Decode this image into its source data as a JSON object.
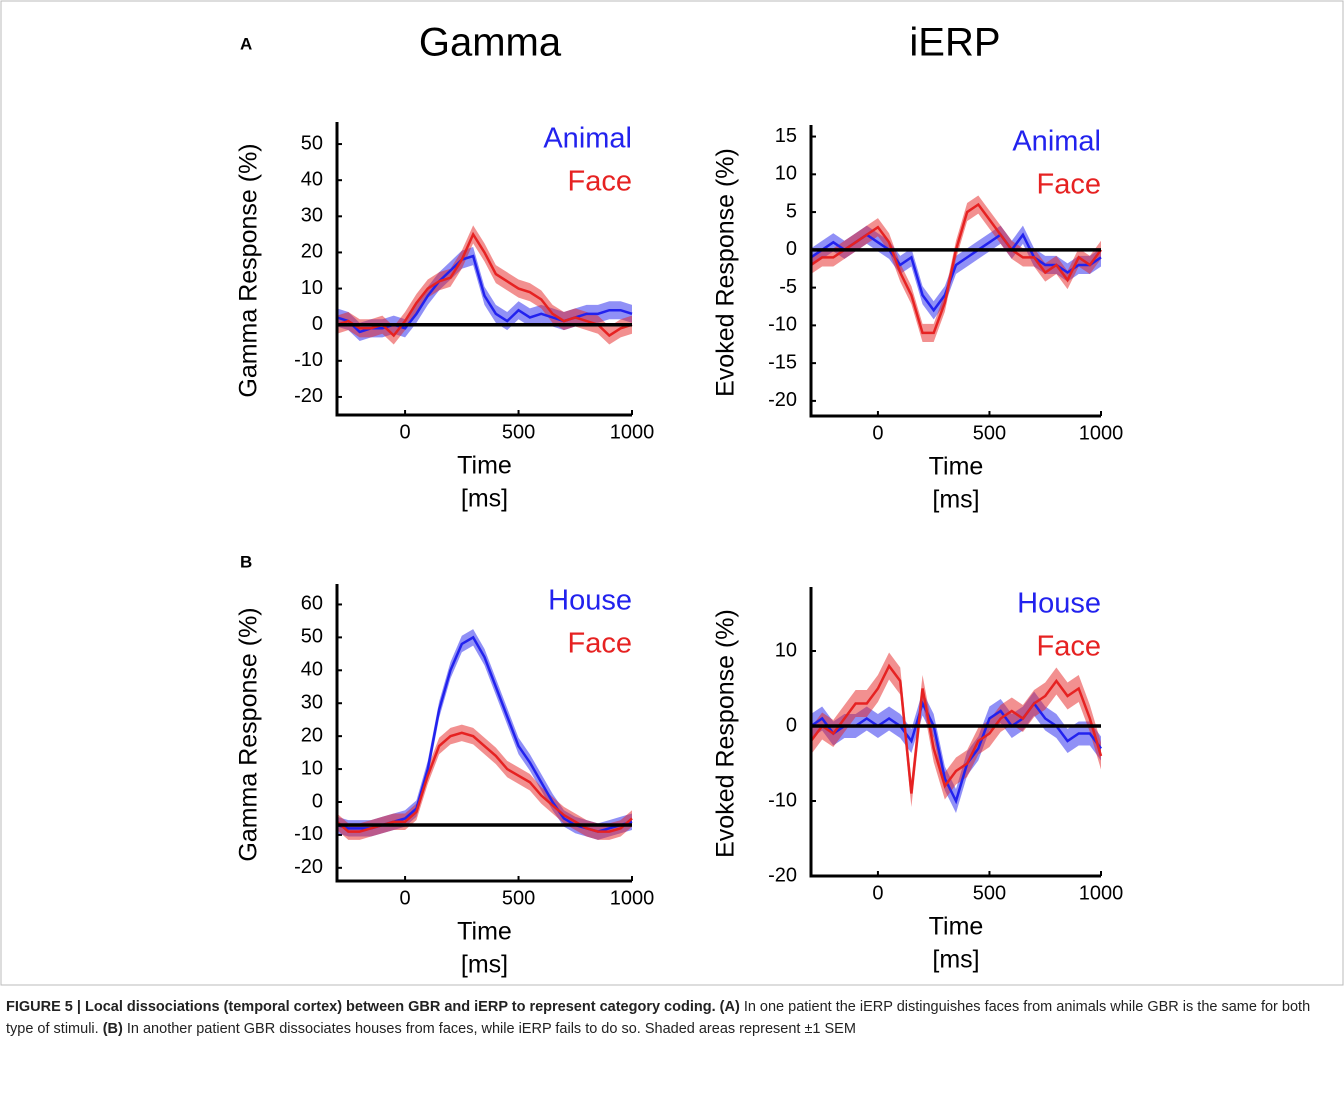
{
  "column_titles": [
    "Gamma",
    "iERP"
  ],
  "panel_labels": [
    "A",
    "B"
  ],
  "chart_data": [
    {
      "type": "line",
      "ylabel": "Gamma Response (%)",
      "xlabel": [
        "Time",
        "[ms]"
      ],
      "x": [
        -300,
        -250,
        -200,
        -150,
        -100,
        -50,
        0,
        50,
        100,
        150,
        200,
        250,
        300,
        350,
        400,
        450,
        500,
        550,
        600,
        650,
        700,
        750,
        800,
        850,
        900,
        950,
        1000
      ],
      "xlim": [
        -300,
        1000
      ],
      "xticks": [
        0,
        500,
        1000
      ],
      "ylim": [
        -25,
        55
      ],
      "yticks": [
        -20,
        -10,
        0,
        10,
        20,
        30,
        40,
        50
      ],
      "hline": 0,
      "series": [
        {
          "name": "Animal",
          "color": "#2222ee",
          "error": 2.5,
          "values": [
            2,
            1,
            -2,
            -1,
            -1,
            0,
            -1,
            3,
            8,
            12,
            15,
            18,
            19,
            8,
            3,
            1,
            4,
            2,
            3,
            2,
            1,
            2,
            3,
            3,
            4,
            4,
            3
          ]
        },
        {
          "name": "Face",
          "color": "#e62222",
          "error": 2.5,
          "values": [
            0,
            1,
            -1,
            -1,
            0,
            -3,
            1,
            6,
            10,
            12,
            13,
            18,
            25,
            20,
            14,
            12,
            10,
            9,
            7,
            3,
            1,
            2,
            1,
            0,
            -3,
            -1,
            0
          ]
        }
      ]
    },
    {
      "type": "line",
      "ylabel": "Evoked Response (%)",
      "xlabel": [
        "Time",
        "[ms]"
      ],
      "x": [
        -300,
        -250,
        -200,
        -150,
        -100,
        -50,
        0,
        50,
        100,
        150,
        200,
        250,
        300,
        350,
        400,
        450,
        500,
        550,
        600,
        650,
        700,
        750,
        800,
        850,
        900,
        950,
        1000
      ],
      "xlim": [
        -300,
        1000
      ],
      "xticks": [
        0,
        500,
        1000
      ],
      "ylim": [
        -22,
        16
      ],
      "yticks": [
        -20,
        -15,
        -10,
        -5,
        0,
        5,
        10,
        15
      ],
      "hline": 0,
      "series": [
        {
          "name": "Animal",
          "color": "#2222ee",
          "error": 1.2,
          "values": [
            -1,
            0,
            1,
            0,
            1,
            2,
            1,
            0,
            -2,
            -1,
            -6,
            -8,
            -6,
            -2,
            -1,
            0,
            1,
            2,
            0,
            2,
            -1,
            -2,
            -2,
            -3,
            -2,
            -2,
            -1
          ]
        },
        {
          "name": "Face",
          "color": "#e62222",
          "error": 1.2,
          "values": [
            -2,
            -1,
            -1,
            0,
            1,
            2,
            3,
            1,
            -3,
            -6,
            -11,
            -11,
            -7,
            0,
            5,
            6,
            4,
            2,
            0,
            -1,
            -1,
            -3,
            -2,
            -4,
            -1,
            -2,
            0
          ]
        }
      ]
    },
    {
      "type": "line",
      "ylabel": "Gamma Response (%)",
      "xlabel": [
        "Time",
        "[ms]"
      ],
      "x": [
        -300,
        -250,
        -200,
        -150,
        -100,
        -50,
        0,
        50,
        100,
        150,
        200,
        250,
        300,
        350,
        400,
        450,
        500,
        550,
        600,
        650,
        700,
        750,
        800,
        850,
        900,
        950,
        1000
      ],
      "xlim": [
        -300,
        1000
      ],
      "xticks": [
        0,
        500,
        1000
      ],
      "ylim": [
        -24,
        65
      ],
      "yticks": [
        -20,
        -10,
        0,
        10,
        20,
        30,
        40,
        50,
        60
      ],
      "hline": -7,
      "series": [
        {
          "name": "House",
          "color": "#2222ee",
          "error": 2.5,
          "values": [
            -7,
            -8,
            -8,
            -8,
            -7,
            -6,
            -5,
            -2,
            10,
            28,
            40,
            48,
            50,
            44,
            35,
            26,
            17,
            12,
            6,
            0,
            -5,
            -7,
            -8,
            -9,
            -8,
            -7,
            -6
          ]
        },
        {
          "name": "Face",
          "color": "#e62222",
          "error": 2.5,
          "values": [
            -6,
            -9,
            -9,
            -8,
            -7,
            -6,
            -6,
            -3,
            8,
            17,
            20,
            21,
            20,
            17,
            14,
            10,
            8,
            6,
            2,
            -1,
            -4,
            -6,
            -8,
            -9,
            -9,
            -8,
            -5
          ]
        }
      ]
    },
    {
      "type": "line",
      "ylabel": "Evoked Response (%)",
      "xlabel": [
        "Time",
        "[ms]"
      ],
      "x": [
        -300,
        -250,
        -200,
        -150,
        -100,
        -50,
        0,
        50,
        100,
        150,
        200,
        250,
        300,
        350,
        400,
        450,
        500,
        550,
        600,
        650,
        700,
        750,
        800,
        850,
        900,
        950,
        1000
      ],
      "xlim": [
        -300,
        1000
      ],
      "xticks": [
        0,
        500,
        1000
      ],
      "ylim": [
        -20,
        18
      ],
      "yticks": [
        -20,
        -10,
        0,
        10
      ],
      "hline": 0,
      "series": [
        {
          "name": "House",
          "color": "#2222ee",
          "error": 1.6,
          "values": [
            0,
            1,
            -1,
            0,
            0,
            1,
            0,
            1,
            0,
            -2,
            3,
            0,
            -7,
            -10,
            -5,
            -3,
            1,
            2,
            0,
            1,
            3,
            1,
            0,
            -2,
            -1,
            -1,
            -3
          ]
        },
        {
          "name": "Face",
          "color": "#e62222",
          "error": 1.8,
          "values": [
            -2,
            0,
            -1,
            1,
            3,
            3,
            5,
            8,
            6,
            -9,
            5,
            -3,
            -8,
            -6,
            -5,
            -2,
            -1,
            1,
            2,
            1,
            3,
            4,
            6,
            4,
            5,
            1,
            -4
          ]
        }
      ]
    }
  ],
  "caption": {
    "title": "FIGURE 5 | Local dissociations (temporal cortex) between GBR and iERP to represent category coding.",
    "segments": [
      {
        "text": "(A)",
        "bold": true
      },
      {
        "text": "In one patient the iERP distinguishes faces from animals while GBR is the same for both type of stimuli.",
        "bold": false
      },
      {
        "text": "(B)",
        "bold": true
      },
      {
        "text": "In another patient GBR dissociates houses from faces, while iERP fails to do so. Shaded areas represent ±1 SEM",
        "bold": false
      }
    ]
  }
}
